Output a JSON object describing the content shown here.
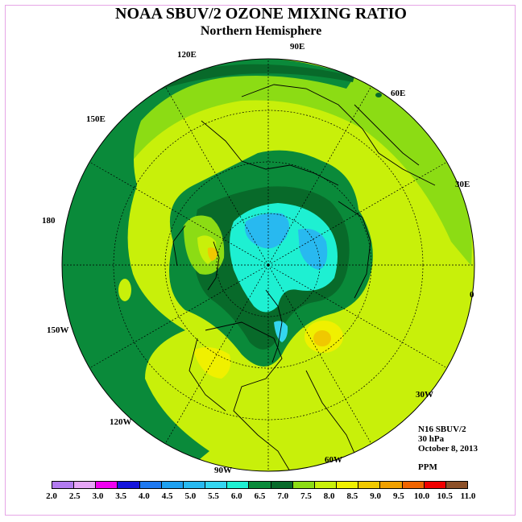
{
  "title": "NOAA SBUV/2 OZONE MIXING RATIO",
  "subtitle": "Northern Hemisphere",
  "longitude_labels": [
    "120E",
    "90E",
    "60E",
    "30E",
    "150E",
    "180",
    "0",
    "150W",
    "30W",
    "120W",
    "60W",
    "90W"
  ],
  "info": {
    "instrument": "N16 SBUV/2",
    "pressure": "30 hPa",
    "date": "October 8, 2013",
    "units": "PPM"
  },
  "legend": {
    "ticks": [
      "2.0",
      "2.5",
      "3.0",
      "3.5",
      "4.0",
      "4.5",
      "5.0",
      "5.5",
      "6.0",
      "6.5",
      "7.0",
      "7.5",
      "8.0",
      "8.5",
      "9.0",
      "9.5",
      "10.0",
      "10.5",
      "11.0"
    ],
    "colors": [
      "#b27bf0",
      "#e6a6f6",
      "#f000f0",
      "#1414dc",
      "#1e78f0",
      "#1ea0f0",
      "#28b9f0",
      "#34d6f0",
      "#1ef0d2",
      "#0a8a3a",
      "#086a2a",
      "#8cdc14",
      "#c8f00a",
      "#f0f000",
      "#f0c800",
      "#f0a000",
      "#f06400",
      "#f00000",
      "#8c5028"
    ]
  }
}
